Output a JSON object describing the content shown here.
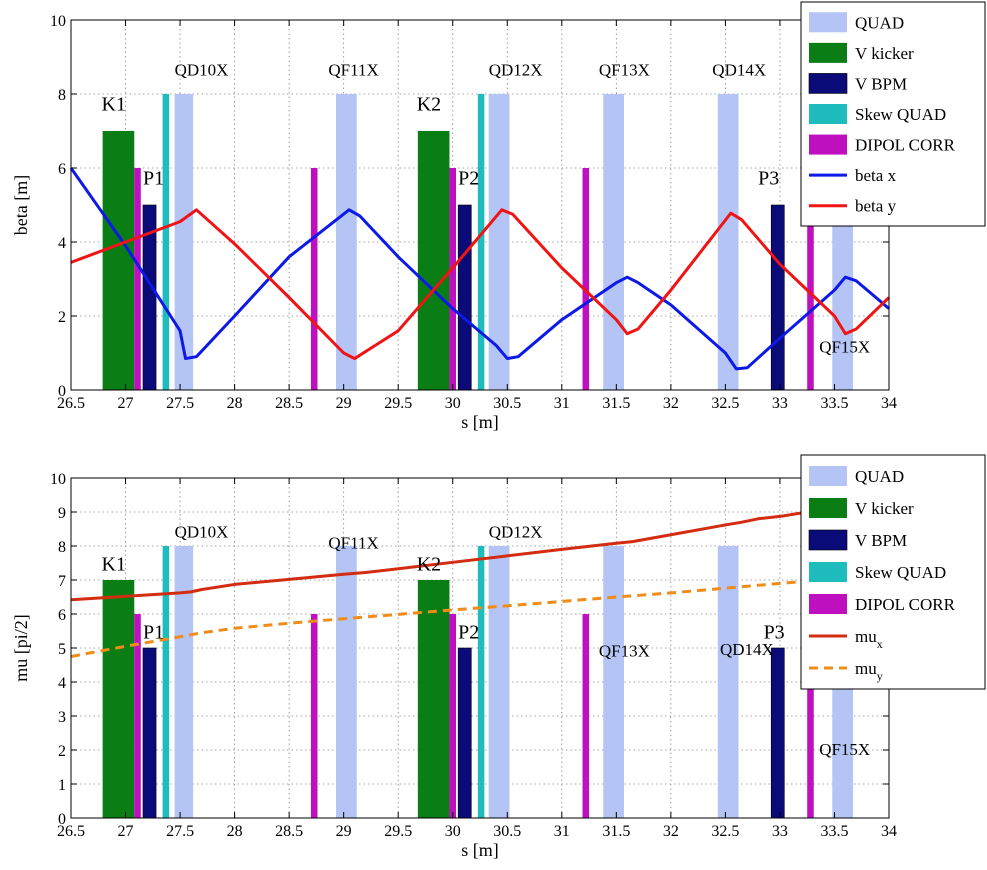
{
  "chart_data": [
    {
      "type": "bar",
      "xlabel": "s [m]",
      "ylabel": "beta [m]",
      "xlim": [
        26.5,
        34
      ],
      "ylim": [
        0,
        10
      ],
      "xticks": [
        "26.5",
        "27",
        "27.5",
        "28",
        "28.5",
        "29",
        "29.5",
        "30",
        "30.5",
        "31",
        "31.5",
        "32",
        "32.5",
        "33",
        "33.5",
        "34"
      ],
      "yticks": [
        "0",
        "2",
        "4",
        "6",
        "8",
        "10"
      ],
      "grid": true,
      "legend_position": "top-right",
      "elements": [
        {
          "kind": "QUAD",
          "x0": 27.45,
          "x1": 27.62,
          "h": 8
        },
        {
          "kind": "QUAD",
          "x0": 28.93,
          "x1": 29.12,
          "h": 8
        },
        {
          "kind": "QUAD",
          "x0": 30.33,
          "x1": 30.52,
          "h": 8
        },
        {
          "kind": "QUAD",
          "x0": 31.38,
          "x1": 31.57,
          "h": 8
        },
        {
          "kind": "QUAD",
          "x0": 32.43,
          "x1": 32.62,
          "h": 8
        },
        {
          "kind": "QUAD",
          "x0": 33.48,
          "x1": 33.67,
          "h": 8
        },
        {
          "kind": "V kicker",
          "x0": 26.79,
          "x1": 27.08,
          "h": 7
        },
        {
          "kind": "V kicker",
          "x0": 29.68,
          "x1": 29.97,
          "h": 7
        },
        {
          "kind": "V BPM",
          "x0": 27.16,
          "x1": 27.28,
          "h": 5
        },
        {
          "kind": "V BPM",
          "x0": 30.05,
          "x1": 30.17,
          "h": 5
        },
        {
          "kind": "V BPM",
          "x0": 32.92,
          "x1": 33.04,
          "h": 5
        },
        {
          "kind": "Skew QUAD",
          "x0": 27.34,
          "x1": 27.4,
          "h": 8
        },
        {
          "kind": "Skew QUAD",
          "x0": 30.23,
          "x1": 30.29,
          "h": 8
        },
        {
          "kind": "DIPOL CORR",
          "x0": 27.08,
          "x1": 27.14,
          "h": 6
        },
        {
          "kind": "DIPOL CORR",
          "x0": 28.7,
          "x1": 28.76,
          "h": 6
        },
        {
          "kind": "DIPOL CORR",
          "x0": 29.97,
          "x1": 30.03,
          "h": 6
        },
        {
          "kind": "DIPOL CORR",
          "x0": 31.19,
          "x1": 31.25,
          "h": 6
        },
        {
          "kind": "DIPOL CORR",
          "x0": 33.25,
          "x1": 33.31,
          "h": 6
        }
      ],
      "series": [
        {
          "name": "beta x",
          "color": "#0d19e6",
          "style": "solid",
          "x": [
            26.5,
            27.0,
            27.5,
            27.55,
            27.65,
            28.0,
            28.5,
            29.05,
            29.15,
            29.5,
            30.0,
            30.4,
            30.5,
            30.6,
            31.0,
            31.5,
            31.6,
            31.7,
            32.0,
            32.5,
            32.6,
            32.7,
            33.0,
            33.5,
            33.6,
            33.7,
            34.0
          ],
          "y": [
            6.0,
            3.9,
            1.6,
            0.85,
            0.9,
            2.0,
            3.6,
            4.87,
            4.7,
            3.6,
            2.2,
            1.2,
            0.85,
            0.9,
            1.9,
            2.9,
            3.05,
            2.9,
            2.3,
            1.0,
            0.57,
            0.6,
            1.4,
            2.7,
            3.05,
            2.95,
            2.2
          ]
        },
        {
          "name": "beta y",
          "color": "#f01414",
          "style": "solid",
          "x": [
            26.5,
            27.0,
            27.5,
            27.65,
            28.0,
            28.5,
            29.0,
            29.1,
            29.5,
            30.0,
            30.45,
            30.55,
            31.0,
            31.5,
            31.6,
            31.7,
            32.0,
            32.55,
            32.65,
            33.0,
            33.5,
            33.6,
            33.7,
            34.0
          ],
          "y": [
            3.45,
            4.0,
            4.55,
            4.87,
            3.95,
            2.5,
            1.0,
            0.85,
            1.6,
            3.3,
            4.87,
            4.75,
            3.3,
            1.9,
            1.52,
            1.65,
            2.7,
            4.78,
            4.6,
            3.4,
            2.0,
            1.52,
            1.65,
            2.5
          ]
        }
      ],
      "legend": [
        "QUAD",
        "V kicker",
        "V BPM",
        "Skew QUAD",
        "DIPOL CORR",
        "beta x",
        "beta y"
      ],
      "labels": [
        {
          "text": "K1",
          "x": 26.78,
          "y": 7.55
        },
        {
          "text": "P1",
          "x": 27.16,
          "y": 5.55
        },
        {
          "text": "QD10X",
          "x": 27.45,
          "y": 8.5
        },
        {
          "text": "QF11X",
          "x": 28.86,
          "y": 8.5
        },
        {
          "text": "K2",
          "x": 29.67,
          "y": 7.55
        },
        {
          "text": "P2",
          "x": 30.05,
          "y": 5.55
        },
        {
          "text": "QD12X",
          "x": 30.33,
          "y": 8.5
        },
        {
          "text": "QF13X",
          "x": 31.34,
          "y": 8.5
        },
        {
          "text": "QD14X",
          "x": 32.38,
          "y": 8.5
        },
        {
          "text": "P3",
          "x": 32.8,
          "y": 5.55
        },
        {
          "text": "QF15X",
          "x": 33.36,
          "y": 1.02
        }
      ]
    },
    {
      "type": "bar",
      "xlabel": "s [m]",
      "ylabel": "mu [pi/2]",
      "xlim": [
        26.5,
        34
      ],
      "ylim": [
        0,
        10
      ],
      "xticks": [
        "26.5",
        "27",
        "27.5",
        "28",
        "28.5",
        "29",
        "29.5",
        "30",
        "30.5",
        "31",
        "31.5",
        "32",
        "32.5",
        "33",
        "33.5",
        "34"
      ],
      "yticks": [
        "0",
        "1",
        "2",
        "3",
        "4",
        "5",
        "6",
        "7",
        "8",
        "9",
        "10"
      ],
      "grid": true,
      "legend_position": "top-right",
      "elements": [
        {
          "kind": "QUAD",
          "x0": 27.45,
          "x1": 27.62,
          "h": 8
        },
        {
          "kind": "QUAD",
          "x0": 28.93,
          "x1": 29.12,
          "h": 8
        },
        {
          "kind": "QUAD",
          "x0": 30.33,
          "x1": 30.52,
          "h": 8
        },
        {
          "kind": "QUAD",
          "x0": 31.38,
          "x1": 31.57,
          "h": 8
        },
        {
          "kind": "QUAD",
          "x0": 32.43,
          "x1": 32.62,
          "h": 8
        },
        {
          "kind": "QUAD",
          "x0": 33.48,
          "x1": 33.67,
          "h": 8
        },
        {
          "kind": "V kicker",
          "x0": 26.79,
          "x1": 27.08,
          "h": 7
        },
        {
          "kind": "V kicker",
          "x0": 29.68,
          "x1": 29.97,
          "h": 7
        },
        {
          "kind": "V BPM",
          "x0": 27.16,
          "x1": 27.28,
          "h": 5
        },
        {
          "kind": "V BPM",
          "x0": 30.05,
          "x1": 30.17,
          "h": 5
        },
        {
          "kind": "V BPM",
          "x0": 32.92,
          "x1": 33.04,
          "h": 5
        },
        {
          "kind": "Skew QUAD",
          "x0": 27.34,
          "x1": 27.4,
          "h": 8
        },
        {
          "kind": "Skew QUAD",
          "x0": 30.23,
          "x1": 30.29,
          "h": 8
        },
        {
          "kind": "DIPOL CORR",
          "x0": 27.08,
          "x1": 27.14,
          "h": 6
        },
        {
          "kind": "DIPOL CORR",
          "x0": 28.7,
          "x1": 28.76,
          "h": 6
        },
        {
          "kind": "DIPOL CORR",
          "x0": 29.97,
          "x1": 30.03,
          "h": 6
        },
        {
          "kind": "DIPOL CORR",
          "x0": 31.19,
          "x1": 31.25,
          "h": 6
        },
        {
          "kind": "DIPOL CORR",
          "x0": 33.25,
          "x1": 33.31,
          "h": 6
        }
      ],
      "series": [
        {
          "name": "mu",
          "subscript": "x",
          "color": "#d42c10",
          "style": "solid",
          "x": [
            26.5,
            27.0,
            27.5,
            27.6,
            27.7,
            28.0,
            28.5,
            29.0,
            29.2,
            29.5,
            30.0,
            30.5,
            31.0,
            31.5,
            31.65,
            32.0,
            32.5,
            32.65,
            32.8,
            33.0,
            33.25
          ],
          "y": [
            6.42,
            6.52,
            6.62,
            6.65,
            6.72,
            6.87,
            7.02,
            7.17,
            7.22,
            7.33,
            7.52,
            7.71,
            7.9,
            8.08,
            8.13,
            8.33,
            8.62,
            8.7,
            8.8,
            8.87,
            9.0
          ]
        },
        {
          "name": "mu",
          "subscript": "y",
          "color": "#f08c1a",
          "style": "dashed",
          "x": [
            26.5,
            27.0,
            27.5,
            27.7,
            28.0,
            28.5,
            29.0,
            29.5,
            30.0,
            30.5,
            31.0,
            31.5,
            32.0,
            32.5,
            33.0,
            33.3
          ],
          "y": [
            4.75,
            5.05,
            5.33,
            5.45,
            5.58,
            5.73,
            5.86,
            5.99,
            6.12,
            6.24,
            6.37,
            6.5,
            6.62,
            6.76,
            6.9,
            6.98
          ]
        }
      ],
      "legend": [
        "QUAD",
        "V kicker",
        "V BPM",
        "Skew QUAD",
        "DIPOL CORR",
        "mu_x",
        "mu_y"
      ],
      "labels": [
        {
          "text": "K1",
          "x": 26.78,
          "y": 7.28
        },
        {
          "text": "P1",
          "x": 27.16,
          "y": 5.28
        },
        {
          "text": "QD10X",
          "x": 27.45,
          "y": 8.25
        },
        {
          "text": "QF11X",
          "x": 28.86,
          "y": 7.92
        },
        {
          "text": "K2",
          "x": 29.67,
          "y": 7.28
        },
        {
          "text": "P2",
          "x": 30.05,
          "y": 5.28
        },
        {
          "text": "QD12X",
          "x": 30.33,
          "y": 8.25
        },
        {
          "text": "QF13X",
          "x": 31.34,
          "y": 4.75
        },
        {
          "text": "QD14X",
          "x": 32.45,
          "y": 4.8
        },
        {
          "text": "P3",
          "x": 32.85,
          "y": 5.28
        },
        {
          "text": "QF15X",
          "x": 33.36,
          "y": 1.85
        }
      ]
    }
  ],
  "colors": {
    "QUAD": "#b3c4f5",
    "V kicker": "#0a7d14",
    "V BPM": "#0a0a78",
    "Skew QUAD": "#1ebcbc",
    "DIPOL CORR": "#bf10bf"
  }
}
